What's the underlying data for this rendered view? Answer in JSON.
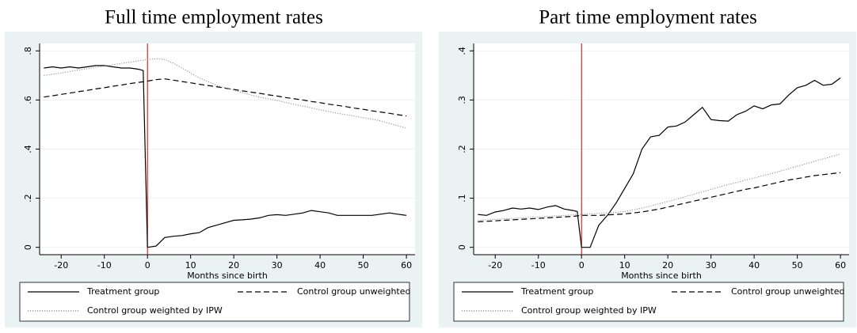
{
  "chart_data": [
    {
      "type": "line",
      "title": "Full time employment rates",
      "x_label": "Months since birth",
      "x": [
        -24,
        -22,
        -20,
        -18,
        -16,
        -14,
        -12,
        -10,
        -8,
        -6,
        -4,
        -2,
        -1,
        0,
        2,
        4,
        6,
        8,
        10,
        12,
        14,
        16,
        18,
        20,
        22,
        24,
        26,
        28,
        30,
        32,
        34,
        36,
        38,
        40,
        42,
        44,
        46,
        48,
        50,
        52,
        54,
        56,
        58,
        60
      ],
      "series": [
        {
          "name": "Treatment group",
          "color": "#000000",
          "style": "solid",
          "values": [
            0.73,
            0.735,
            0.73,
            0.735,
            0.73,
            0.735,
            0.74,
            0.74,
            0.735,
            0.73,
            0.73,
            0.725,
            0.72,
            0.0,
            0.005,
            0.04,
            0.045,
            0.048,
            0.055,
            0.06,
            0.08,
            0.09,
            0.1,
            0.11,
            0.112,
            0.115,
            0.12,
            0.13,
            0.133,
            0.13,
            0.135,
            0.14,
            0.15,
            0.145,
            0.14,
            0.13,
            0.13,
            0.13,
            0.13,
            0.13,
            0.135,
            0.14,
            0.135,
            0.13
          ]
        },
        {
          "name": "Control group unweighted",
          "color": "#000000",
          "style": "dashed",
          "values": [
            0.612,
            0.617,
            0.623,
            0.628,
            0.634,
            0.639,
            0.645,
            0.65,
            0.656,
            0.661,
            0.667,
            0.672,
            0.674,
            0.677,
            0.683,
            0.686,
            0.681,
            0.675,
            0.67,
            0.664,
            0.659,
            0.654,
            0.648,
            0.643,
            0.637,
            0.632,
            0.627,
            0.621,
            0.616,
            0.61,
            0.605,
            0.6,
            0.594,
            0.589,
            0.583,
            0.578,
            0.573,
            0.567,
            0.562,
            0.556,
            0.551,
            0.546,
            0.54,
            0.535
          ]
        },
        {
          "name": "Control group weighted by IPW",
          "color": "#888888",
          "style": "dotted",
          "values": [
            0.7,
            0.705,
            0.71,
            0.716,
            0.722,
            0.727,
            0.733,
            0.738,
            0.744,
            0.749,
            0.754,
            0.76,
            0.762,
            0.765,
            0.768,
            0.765,
            0.75,
            0.73,
            0.71,
            0.69,
            0.675,
            0.66,
            0.65,
            0.64,
            0.63,
            0.62,
            0.612,
            0.605,
            0.598,
            0.59,
            0.582,
            0.575,
            0.568,
            0.56,
            0.553,
            0.546,
            0.54,
            0.534,
            0.528,
            0.522,
            0.515,
            0.505,
            0.495,
            0.485
          ]
        }
      ],
      "xlim": [
        -25,
        62
      ],
      "xticks": [
        -20,
        -10,
        0,
        10,
        20,
        30,
        40,
        50,
        60
      ],
      "ylim": [
        -0.03,
        0.83
      ],
      "yticks": [
        0,
        {
          "value": 0.2,
          "label": ".2"
        },
        {
          "value": 0.4,
          "label": ".4"
        },
        {
          "value": 0.6,
          "label": ".6"
        },
        {
          "value": 0.8,
          "label": ".8"
        }
      ],
      "xline": 0,
      "xline_color": "#cc0000",
      "grid": true,
      "legend": "bottom"
    },
    {
      "type": "line",
      "title": "Part time employment rates",
      "x_label": "Months since birth",
      "x": [
        -24,
        -22,
        -20,
        -18,
        -16,
        -14,
        -12,
        -10,
        -8,
        -6,
        -4,
        -2,
        -1,
        0,
        2,
        4,
        6,
        8,
        10,
        12,
        14,
        16,
        18,
        20,
        22,
        24,
        26,
        28,
        30,
        32,
        34,
        36,
        38,
        40,
        42,
        44,
        46,
        48,
        50,
        52,
        54,
        56,
        58,
        60
      ],
      "series": [
        {
          "name": "Treatment group",
          "color": "#000000",
          "style": "solid",
          "values": [
            0.067,
            0.065,
            0.072,
            0.075,
            0.08,
            0.078,
            0.08,
            0.077,
            0.082,
            0.085,
            0.078,
            0.075,
            0.073,
            0.0,
            0.0,
            0.045,
            0.065,
            0.09,
            0.12,
            0.15,
            0.2,
            0.225,
            0.228,
            0.245,
            0.247,
            0.255,
            0.27,
            0.285,
            0.26,
            0.258,
            0.257,
            0.27,
            0.277,
            0.288,
            0.282,
            0.29,
            0.292,
            0.31,
            0.325,
            0.33,
            0.34,
            0.33,
            0.332,
            0.345
          ]
        },
        {
          "name": "Control group unweighted",
          "color": "#000000",
          "style": "dashed",
          "values": [
            0.052,
            0.053,
            0.054,
            0.055,
            0.056,
            0.057,
            0.058,
            0.059,
            0.06,
            0.061,
            0.062,
            0.063,
            0.064,
            0.065,
            0.065,
            0.065,
            0.066,
            0.067,
            0.068,
            0.07,
            0.072,
            0.075,
            0.078,
            0.082,
            0.086,
            0.09,
            0.094,
            0.098,
            0.102,
            0.106,
            0.11,
            0.114,
            0.118,
            0.121,
            0.125,
            0.129,
            0.133,
            0.137,
            0.14,
            0.143,
            0.146,
            0.148,
            0.15,
            0.152
          ]
        },
        {
          "name": "Control group weighted by IPW",
          "color": "#888888",
          "style": "dotted",
          "values": [
            0.055,
            0.056,
            0.057,
            0.058,
            0.059,
            0.06,
            0.061,
            0.062,
            0.063,
            0.064,
            0.065,
            0.066,
            0.067,
            0.067,
            0.068,
            0.069,
            0.07,
            0.071,
            0.073,
            0.076,
            0.08,
            0.084,
            0.089,
            0.093,
            0.098,
            0.103,
            0.108,
            0.113,
            0.118,
            0.123,
            0.128,
            0.132,
            0.137,
            0.141,
            0.146,
            0.15,
            0.155,
            0.16,
            0.165,
            0.17,
            0.175,
            0.18,
            0.185,
            0.19
          ]
        }
      ],
      "xlim": [
        -25,
        62
      ],
      "xticks": [
        -20,
        -10,
        0,
        10,
        20,
        30,
        40,
        50,
        60
      ],
      "ylim": [
        -0.015,
        0.415
      ],
      "yticks": [
        0,
        {
          "value": 0.1,
          "label": ".1"
        },
        {
          "value": 0.2,
          "label": ".2"
        },
        {
          "value": 0.3,
          "label": ".3"
        },
        {
          "value": 0.4,
          "label": ".4"
        }
      ],
      "xline": 0,
      "xline_color": "#cc0000",
      "grid": true,
      "legend": "bottom"
    }
  ]
}
